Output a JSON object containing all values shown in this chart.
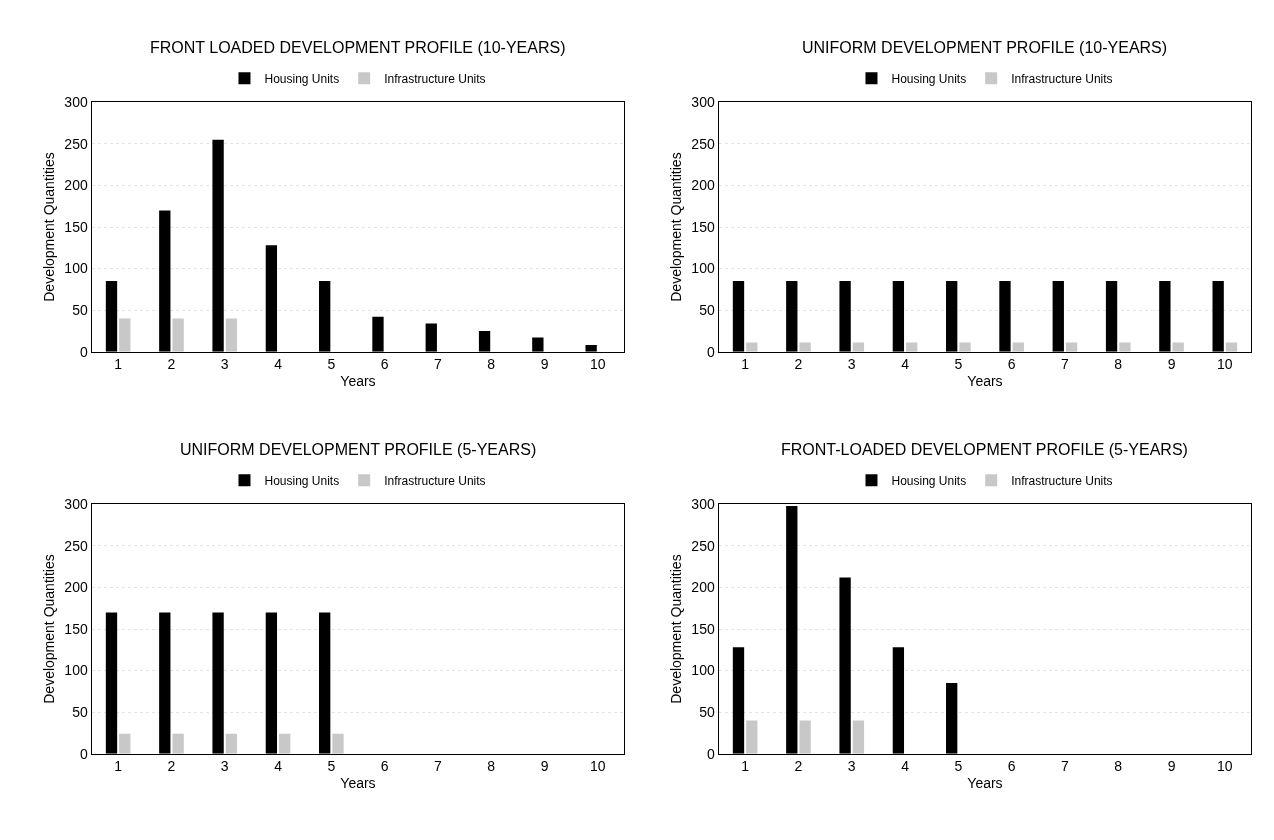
{
  "chart_data": [
    {
      "type": "bar",
      "title": "FRONT LOADED DEVELOPMENT PROFILE (10-YEARS)",
      "xlabel": "Years",
      "ylabel": "Development Quantities",
      "categories": [
        "1",
        "2",
        "3",
        "4",
        "5",
        "6",
        "7",
        "8",
        "9",
        "10"
      ],
      "ylim": [
        0,
        300
      ],
      "yticks": [
        0,
        50,
        100,
        150,
        200,
        250,
        300
      ],
      "grid": "y",
      "legend": "top",
      "series": [
        {
          "name": "Housing Units",
          "color": "#000000",
          "values": [
            85,
            170,
            255,
            128,
            85,
            42,
            34,
            25,
            17,
            8
          ]
        },
        {
          "name": "Infrastructure Units",
          "color": "#c8c8c8",
          "values": [
            40,
            40,
            40,
            null,
            null,
            null,
            null,
            null,
            null,
            null
          ]
        }
      ]
    },
    {
      "type": "bar",
      "title": "UNIFORM DEVELOPMENT PROFILE (10-YEARS)",
      "xlabel": "Years",
      "ylabel": "Development Quantities",
      "categories": [
        "1",
        "2",
        "3",
        "4",
        "5",
        "6",
        "7",
        "8",
        "9",
        "10"
      ],
      "ylim": [
        0,
        300
      ],
      "yticks": [
        0,
        50,
        100,
        150,
        200,
        250,
        300
      ],
      "grid": "y",
      "legend": "top",
      "series": [
        {
          "name": "Housing Units",
          "color": "#000000",
          "values": [
            85,
            85,
            85,
            85,
            85,
            85,
            85,
            85,
            85,
            85
          ]
        },
        {
          "name": "Infrastructure Units",
          "color": "#c8c8c8",
          "values": [
            11,
            11,
            11,
            11,
            11,
            11,
            11,
            11,
            11,
            11
          ]
        }
      ]
    },
    {
      "type": "bar",
      "title": "UNIFORM DEVELOPMENT PROFILE (5-YEARS)",
      "xlabel": "Years",
      "ylabel": "Development Quantities",
      "categories": [
        "1",
        "2",
        "3",
        "4",
        "5",
        "6",
        "7",
        "8",
        "9",
        "10"
      ],
      "ylim": [
        0,
        300
      ],
      "yticks": [
        0,
        50,
        100,
        150,
        200,
        250,
        300
      ],
      "grid": "y",
      "legend": "top",
      "series": [
        {
          "name": "Housing Units",
          "color": "#000000",
          "values": [
            170,
            170,
            170,
            170,
            170,
            null,
            null,
            null,
            null,
            null
          ]
        },
        {
          "name": "Infrastructure Units",
          "color": "#c8c8c8",
          "values": [
            24,
            24,
            24,
            24,
            24,
            null,
            null,
            null,
            null,
            null
          ]
        }
      ]
    },
    {
      "type": "bar",
      "title": "FRONT-LOADED DEVELOPMENT PROFILE (5-YEARS)",
      "xlabel": "Years",
      "ylabel": "Development Quantities",
      "categories": [
        "1",
        "2",
        "3",
        "4",
        "5",
        "6",
        "7",
        "8",
        "9",
        "10"
      ],
      "ylim": [
        0,
        300
      ],
      "yticks": [
        0,
        50,
        100,
        150,
        200,
        250,
        300
      ],
      "grid": "y",
      "legend": "top",
      "series": [
        {
          "name": "Housing Units",
          "color": "#000000",
          "values": [
            128,
            298,
            212,
            128,
            85,
            null,
            null,
            null,
            null,
            null
          ]
        },
        {
          "name": "Infrastructure Units",
          "color": "#c8c8c8",
          "values": [
            40,
            40,
            40,
            null,
            null,
            null,
            null,
            null,
            null,
            null
          ]
        }
      ]
    }
  ]
}
